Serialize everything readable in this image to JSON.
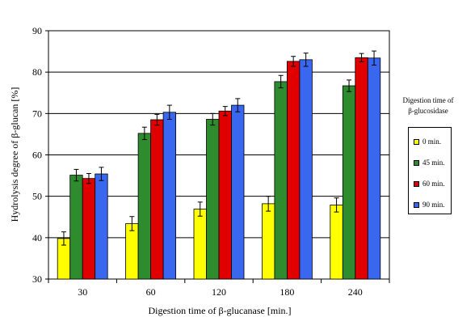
{
  "chart_data": {
    "type": "bar",
    "title": "",
    "xlabel": "Digestion time of β-glucanase [min.]",
    "ylabel": "Hydrolysis degree of  β-glucan [%]",
    "ylim": [
      30,
      90
    ],
    "yticks": [
      "30",
      "40",
      "50",
      "60",
      "70",
      "80",
      "90"
    ],
    "grid": true,
    "legend_position": "right",
    "legend_title_lines": [
      "Digestion time of",
      "β-glucosidase"
    ],
    "categories": [
      "30",
      "60",
      "120",
      "180",
      "240"
    ],
    "series": [
      {
        "name": "0 min.",
        "color": "#ffff00",
        "values": [
          39.8,
          43.4,
          46.9,
          48.2,
          47.9
        ],
        "errors": [
          1.6,
          1.7,
          1.7,
          1.8,
          1.7
        ]
      },
      {
        "name": "45 min.",
        "color": "#2e8b2e",
        "values": [
          55.1,
          65.2,
          68.6,
          77.7,
          76.7
        ],
        "errors": [
          1.4,
          1.5,
          1.4,
          1.5,
          1.4
        ]
      },
      {
        "name": "60 min.",
        "color": "#e00000",
        "values": [
          54.3,
          68.5,
          70.6,
          82.6,
          83.5
        ],
        "errors": [
          1.2,
          1.3,
          1.1,
          1.2,
          1.0
        ]
      },
      {
        "name": "90 min.",
        "color": "#3a67f0",
        "values": [
          55.4,
          70.3,
          72.0,
          83.0,
          83.4
        ],
        "errors": [
          1.6,
          1.7,
          1.6,
          1.6,
          1.7
        ]
      }
    ]
  }
}
